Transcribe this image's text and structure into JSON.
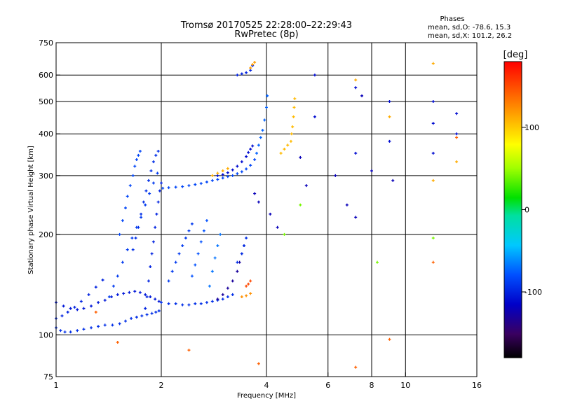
{
  "chart_data": {
    "type": "scatter",
    "title": "Tromsø 20170525 22:28:00–22:29:43",
    "subtitle": "RwPretec (8p)",
    "xlabel": "Frequency [MHz]",
    "ylabel": "Stationary phase Virtual Height [km]",
    "x_scale": "log",
    "y_scale": "log",
    "xlim": [
      1,
      16
    ],
    "ylim": [
      75,
      750
    ],
    "x_ticks": [
      1,
      2,
      4,
      6,
      8,
      10,
      16
    ],
    "x_tick_labels": [
      "1",
      "2",
      "4",
      "6",
      "8",
      "10",
      "16"
    ],
    "y_ticks": [
      75,
      100,
      200,
      300,
      400,
      500,
      600,
      750
    ],
    "y_tick_labels": [
      "75",
      "100",
      "200",
      "300",
      "400",
      "500",
      "600",
      "750"
    ],
    "x_grid": [
      2,
      4,
      6,
      8,
      10
    ],
    "y_grid": [
      100,
      200,
      300,
      400,
      500,
      600
    ],
    "stats": {
      "heading": "Phases",
      "line_o": "mean, sd,O: -78.6, 15.3",
      "line_x": "mean, sd,X: 101.2, 26.2"
    },
    "colorbar": {
      "label": "[deg]",
      "range": [
        -180,
        180
      ],
      "ticks": [
        100,
        0,
        -100
      ],
      "tick_labels": [
        "100",
        "0",
        "-100"
      ]
    },
    "series": [
      {
        "x": [
          1.0,
          1.03,
          1.06,
          1.1,
          1.15,
          1.2,
          1.26,
          1.32,
          1.38,
          1.45,
          1.52,
          1.58,
          1.64,
          1.7,
          1.76,
          1.82,
          1.88,
          1.93,
          1.97
        ],
        "y": [
          105,
          103,
          102,
          102,
          103,
          104,
          105,
          106,
          107,
          107,
          108,
          110,
          112,
          113,
          114,
          115,
          116,
          117,
          118
        ],
        "phase": -95
      },
      {
        "x": [
          1.0,
          1.05,
          1.1,
          1.15,
          1.2,
          1.26,
          1.32,
          1.38,
          1.44,
          1.5,
          1.56,
          1.62,
          1.68,
          1.74,
          1.8,
          1.86,
          1.92,
          1.97
        ],
        "y": [
          125,
          122,
          120,
          119,
          120,
          122,
          125,
          127,
          130,
          132,
          133,
          134,
          135,
          134,
          132,
          130,
          128,
          126
        ],
        "phase": -105
      },
      {
        "x": [
          1.0,
          1.04,
          1.08,
          1.13,
          1.18,
          1.24,
          1.3,
          1.36
        ],
        "y": [
          112,
          114,
          117,
          121,
          126,
          132,
          139,
          146
        ],
        "phase": -100
      },
      {
        "x": [
          1.42,
          1.46,
          1.5,
          1.55,
          1.6,
          1.65,
          1.7,
          1.75,
          1.8,
          1.85,
          1.9,
          1.95
        ],
        "y": [
          130,
          140,
          150,
          165,
          180,
          195,
          210,
          225,
          245,
          265,
          285,
          305
        ],
        "phase": -90
      },
      {
        "x": [
          1.52,
          1.55,
          1.58,
          1.6,
          1.63,
          1.66,
          1.68,
          1.7,
          1.72,
          1.74
        ],
        "y": [
          200,
          220,
          240,
          260,
          280,
          300,
          320,
          335,
          345,
          355
        ],
        "phase": -85
      },
      {
        "x": [
          1.66,
          1.69,
          1.72,
          1.75,
          1.78,
          1.81,
          1.84,
          1.87,
          1.9,
          1.93,
          1.96
        ],
        "y": [
          180,
          195,
          210,
          230,
          250,
          270,
          290,
          310,
          330,
          345,
          355
        ],
        "phase": -95
      },
      {
        "x": [
          1.8,
          1.82,
          1.84,
          1.86,
          1.88,
          1.9,
          1.92,
          1.94,
          1.96,
          1.98,
          2.0
        ],
        "y": [
          120,
          130,
          145,
          160,
          175,
          190,
          210,
          230,
          250,
          270,
          285
        ],
        "phase": -100
      },
      {
        "x": [
          2.02,
          2.1,
          2.2,
          2.3,
          2.4,
          2.5,
          2.6,
          2.7,
          2.8,
          2.9,
          3.0,
          3.1,
          3.2,
          3.3,
          3.4,
          3.5,
          3.6,
          3.7
        ],
        "y": [
          275,
          276,
          277,
          278,
          280,
          282,
          284,
          287,
          290,
          292,
          295,
          298,
          300,
          304,
          308,
          314,
          322,
          335
        ],
        "phase": -85
      },
      {
        "x": [
          2.9,
          3.0,
          3.1,
          3.2,
          3.3,
          3.4,
          3.5,
          3.55,
          3.6,
          3.65
        ],
        "y": [
          300,
          302,
          306,
          312,
          320,
          330,
          342,
          352,
          360,
          368
        ],
        "phase": -110
      },
      {
        "x": [
          3.75,
          3.8,
          3.85,
          3.9,
          3.95,
          4.0,
          4.02
        ],
        "y": [
          350,
          370,
          390,
          410,
          440,
          480,
          520
        ],
        "phase": -75
      },
      {
        "x": [
          2.0,
          2.1,
          2.2,
          2.3,
          2.4,
          2.5,
          2.6,
          2.7,
          2.8,
          2.9,
          3.0,
          3.1,
          3.2
        ],
        "y": [
          125,
          124,
          124,
          123,
          123,
          124,
          124,
          125,
          126,
          127,
          128,
          130,
          132
        ],
        "phase": -95
      },
      {
        "x": [
          2.1,
          2.15,
          2.2,
          2.25,
          2.3,
          2.35,
          2.4,
          2.45
        ],
        "y": [
          145,
          155,
          165,
          175,
          185,
          195,
          205,
          215
        ],
        "phase": -90
      },
      {
        "x": [
          2.45,
          2.5,
          2.55,
          2.6,
          2.65,
          2.7
        ],
        "y": [
          150,
          162,
          175,
          190,
          205,
          220
        ],
        "phase": -80
      },
      {
        "x": [
          2.75,
          2.8,
          2.85,
          2.9,
          2.95
        ],
        "y": [
          140,
          155,
          170,
          185,
          200
        ],
        "phase": -70
      },
      {
        "x": [
          2.9,
          3.0,
          3.1,
          3.2,
          3.3,
          3.35,
          3.4,
          3.45
        ],
        "y": [
          128,
          132,
          138,
          145,
          155,
          165,
          175,
          185
        ],
        "phase": -130
      },
      {
        "x": [
          3.3,
          3.4,
          3.45,
          3.5
        ],
        "y": [
          165,
          175,
          185,
          195
        ],
        "phase": -95
      },
      {
        "x": [
          4.4,
          4.5,
          4.6,
          4.7,
          4.72,
          4.75,
          4.78,
          4.8,
          4.82
        ],
        "y": [
          350,
          360,
          370,
          380,
          400,
          420,
          450,
          480,
          510
        ],
        "phase": 105
      },
      {
        "x": [
          3.3,
          3.4,
          3.5,
          3.6,
          3.65
        ],
        "y": [
          600,
          605,
          610,
          620,
          640
        ],
        "phase": -100
      },
      {
        "x": [
          3.6,
          3.65,
          3.7
        ],
        "y": [
          630,
          645,
          655
        ],
        "phase": 115
      },
      {
        "x": [
          2.8,
          2.9,
          3.0,
          3.1
        ],
        "y": [
          300,
          305,
          310,
          315
        ],
        "phase": 110
      },
      {
        "x": [
          3.4,
          3.5,
          3.6
        ],
        "y": [
          130,
          131,
          133
        ],
        "phase": 120
      },
      {
        "x": [
          3.5,
          3.55,
          3.6
        ],
        "y": [
          140,
          142,
          145
        ],
        "phase": 150
      },
      {
        "x": [
          5.5,
          5.5,
          7.2,
          7.2,
          9.0,
          9.0,
          12.0,
          12.0,
          12.0,
          14.0,
          14.0
        ],
        "y": [
          450,
          600,
          350,
          550,
          500,
          380,
          500,
          430,
          350,
          460,
          400
        ],
        "phase": -110
      },
      {
        "x": [
          7.2,
          9.0,
          12.0,
          12.0,
          14.0
        ],
        "y": [
          580,
          450,
          650,
          290,
          330
        ],
        "phase": 110
      },
      {
        "x": [
          3.7,
          3.8,
          4.1,
          4.3,
          5.0,
          5.2,
          6.3,
          6.8,
          7.2,
          7.5,
          8.0,
          9.2
        ],
        "y": [
          265,
          250,
          230,
          210,
          340,
          280,
          300,
          245,
          225,
          520,
          310,
          290
        ],
        "phase": -120
      },
      {
        "x": [
          2.4,
          3.8,
          7.2,
          9.0,
          12.0,
          14.0,
          1.5,
          1.3
        ],
        "y": [
          90,
          82,
          80,
          97,
          165,
          390,
          95,
          117
        ],
        "phase": 140
      },
      {
        "x": [
          8.3,
          12.0,
          4.5,
          5.0
        ],
        "y": [
          165,
          195,
          200,
          245
        ],
        "phase": 40
      }
    ]
  }
}
